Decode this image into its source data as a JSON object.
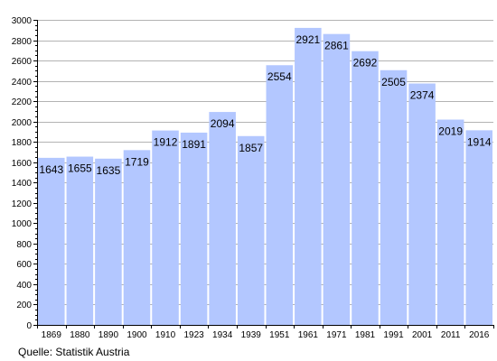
{
  "chart_data": {
    "type": "bar",
    "categories": [
      "1869",
      "1880",
      "1890",
      "1900",
      "1910",
      "1923",
      "1934",
      "1939",
      "1951",
      "1961",
      "1971",
      "1981",
      "1991",
      "2001",
      "2011",
      "2016"
    ],
    "values": [
      1643,
      1655,
      1635,
      1719,
      1912,
      1891,
      2094,
      1857,
      2554,
      2921,
      2861,
      2692,
      2505,
      2374,
      2019,
      1914
    ],
    "data_labels": [
      "1643",
      "1655",
      "1635",
      "1719",
      "1912",
      "1891",
      "2094",
      "1857",
      "2554",
      "2921",
      "2861",
      "2692",
      "2505",
      "2374",
      "2019",
      "1914"
    ],
    "y_ticks": [
      0,
      200,
      400,
      600,
      800,
      1000,
      1200,
      1400,
      1600,
      1800,
      2000,
      2200,
      2400,
      2600,
      2800,
      3000
    ],
    "ylim": [
      0,
      3000
    ],
    "grid": true,
    "legend": "none",
    "title": "",
    "xlabel": "",
    "ylabel": "",
    "bar_color": "#b3c7ff",
    "grid_color": "#b3b3b3"
  },
  "source": "Quelle: Statistik Austria"
}
